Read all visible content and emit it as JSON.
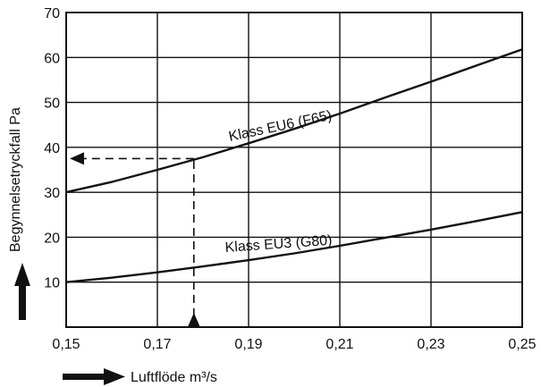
{
  "chart_data": {
    "type": "line",
    "xlabel": "Luftflöde m³/s",
    "ylabel": "Begynnelsetryckfall Pa",
    "xlim": [
      0.15,
      0.25
    ],
    "ylim": [
      0,
      70
    ],
    "x_ticks": [
      "0,15",
      "0,17",
      "0,19",
      "0,21",
      "0,23",
      "0,25"
    ],
    "y_ticks": [
      "10",
      "20",
      "30",
      "40",
      "50",
      "60",
      "70"
    ],
    "grid": true,
    "series": [
      {
        "name": "Klass EU6 (F65)",
        "x": [
          0.15,
          0.16,
          0.17,
          0.18,
          0.19,
          0.2,
          0.21,
          0.22,
          0.23,
          0.24,
          0.25
        ],
        "y": [
          30,
          32.3,
          35,
          37.8,
          40.9,
          44.1,
          47.5,
          51.1,
          54.6,
          58.2,
          61.8
        ]
      },
      {
        "name": "Klass EU3 (G80)",
        "x": [
          0.15,
          0.16,
          0.17,
          0.18,
          0.19,
          0.2,
          0.21,
          0.22,
          0.23,
          0.24,
          0.25
        ],
        "y": [
          10,
          11,
          12.2,
          13.5,
          14.9,
          16.4,
          18.1,
          19.9,
          21.7,
          23.6,
          25.6
        ]
      }
    ],
    "reading_example": {
      "x": 0.178,
      "y": 37.5
    }
  }
}
